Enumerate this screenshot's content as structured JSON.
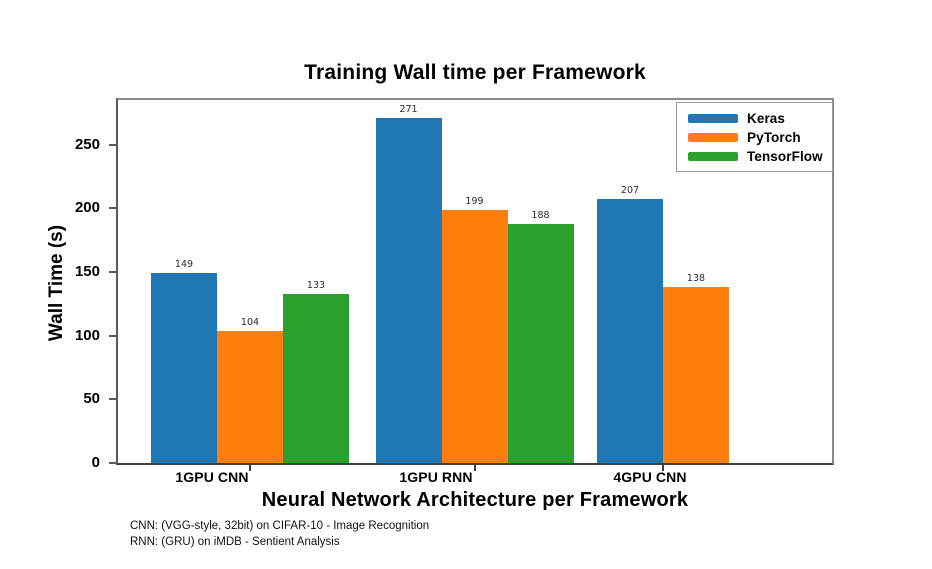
{
  "chart_data": {
    "type": "bar",
    "title": "Training Wall time per Framework",
    "xlabel": "Neural Network Architecture per Framework",
    "ylabel": "Wall Time (s)",
    "categories": [
      "1GPU CNN",
      "1GPU RNN",
      "4GPU CNN"
    ],
    "series": [
      {
        "name": "Keras",
        "color": "#1f77b4",
        "values": [
          149,
          271,
          207
        ]
      },
      {
        "name": "PyTorch",
        "color": "#ff7f0e",
        "values": [
          104,
          199,
          138
        ]
      },
      {
        "name": "TensorFlow",
        "color": "#2ca02c",
        "values": [
          133,
          188,
          null
        ]
      }
    ],
    "bar_value_labels_shown": true,
    "yticks": [
      0,
      50,
      100,
      150,
      200,
      250
    ],
    "ylim": [
      0,
      285
    ],
    "grid": false,
    "legend_position": "upper right",
    "annotations": [
      "CNN: (VGG-style, 32bit) on CIFAR-10 - Image Recognition",
      "RNN: (GRU) on iMDB - Sentient Analysis"
    ]
  }
}
